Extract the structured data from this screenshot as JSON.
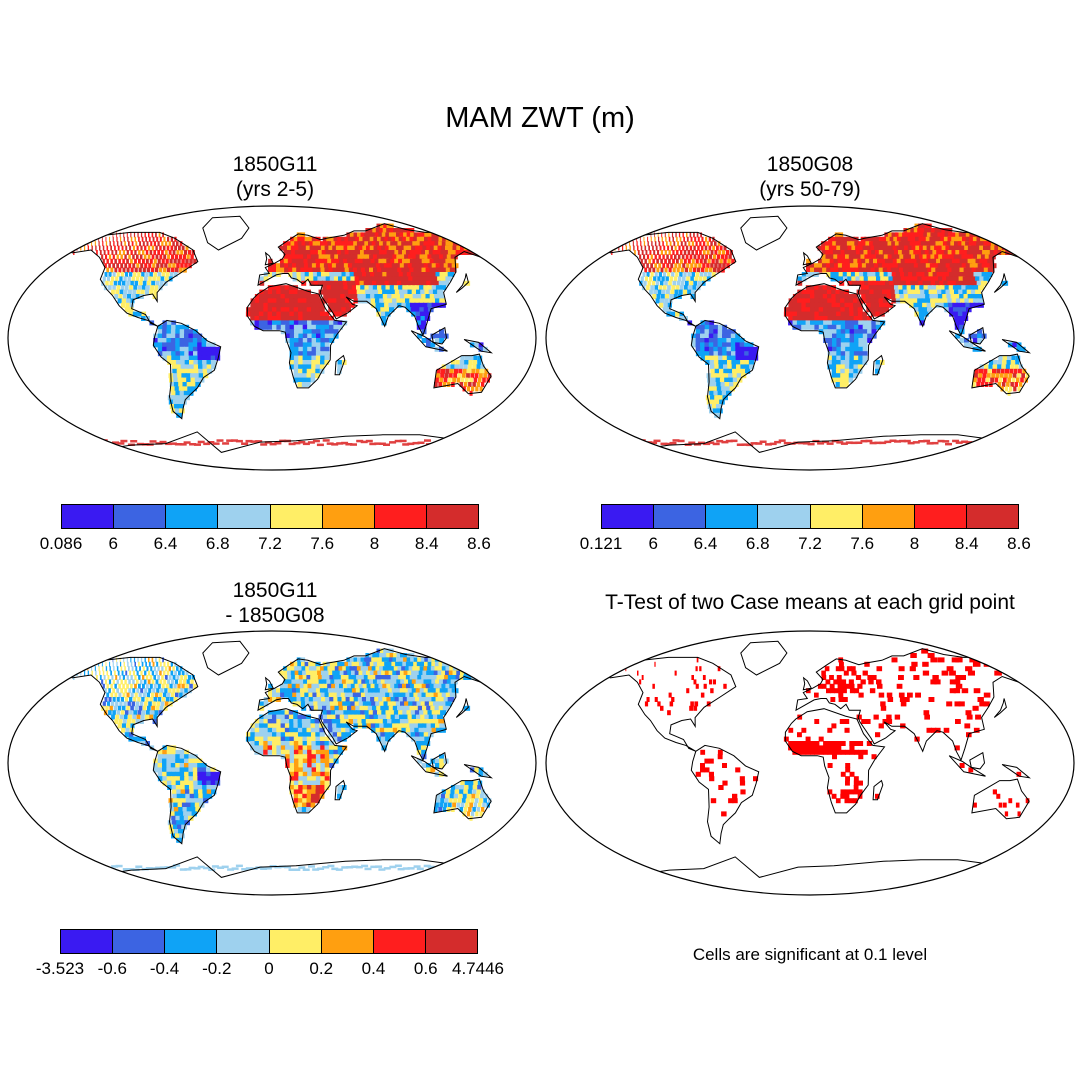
{
  "title": "MAM ZWT (m)",
  "panels": [
    {
      "title": "1850G11\n(yrs 2-5)",
      "field": "zwt",
      "seed": 11
    },
    {
      "title": "1850G08\n(yrs 50-79)",
      "field": "zwt",
      "seed": 8
    },
    {
      "title": "1850G11\n- 1850G08",
      "field": "diff",
      "seed": 3
    },
    {
      "title": "T-Test of two Case means at each grid point",
      "field": "sig",
      "seed": 5
    }
  ],
  "colors": [
    "#3a1af2",
    "#3c64e2",
    "#0fa3f6",
    "#9ed1ee",
    "#ffee66",
    "#ff9f10",
    "#ff1e1e",
    "#d42c2c"
  ],
  "sig_color": "#ff0000",
  "colorbars": [
    {
      "labels": [
        "0.086",
        "6",
        "6.4",
        "6.8",
        "7.2",
        "7.6",
        "8",
        "8.4",
        "8.6"
      ]
    },
    {
      "labels": [
        "0.121",
        "6",
        "6.4",
        "6.8",
        "7.2",
        "7.6",
        "8",
        "8.4",
        "8.6"
      ]
    },
    {
      "labels": [
        "-3.523",
        "-0.6",
        "-0.4",
        "-0.2",
        "0",
        "0.2",
        "0.4",
        "0.6",
        "4.7446"
      ]
    }
  ],
  "note": "Cells are significant at 0.1 level"
}
